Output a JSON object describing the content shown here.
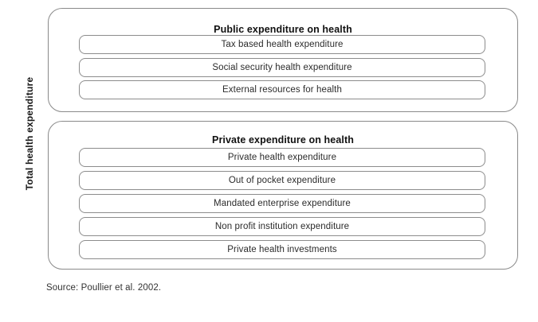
{
  "figure": {
    "axis_label": "Total health expenditure",
    "groups": [
      {
        "title": "Public expenditure on health",
        "items": [
          "Tax based health expenditure",
          "Social security health expenditure",
          "External resources for health"
        ]
      },
      {
        "title": "Private expenditure on health",
        "items": [
          "Private health expenditure",
          "Out of pocket expenditure",
          "Mandated enterprise expenditure",
          "Non profit institution expenditure",
          "Private health investments"
        ]
      }
    ],
    "source": "Source: Poullier et al. 2002.",
    "colors": {
      "background": "#ffffff",
      "border": "#8a8a8a",
      "title_text": "#111111",
      "item_text": "#2b2b2b",
      "source_text": "#333333"
    }
  }
}
